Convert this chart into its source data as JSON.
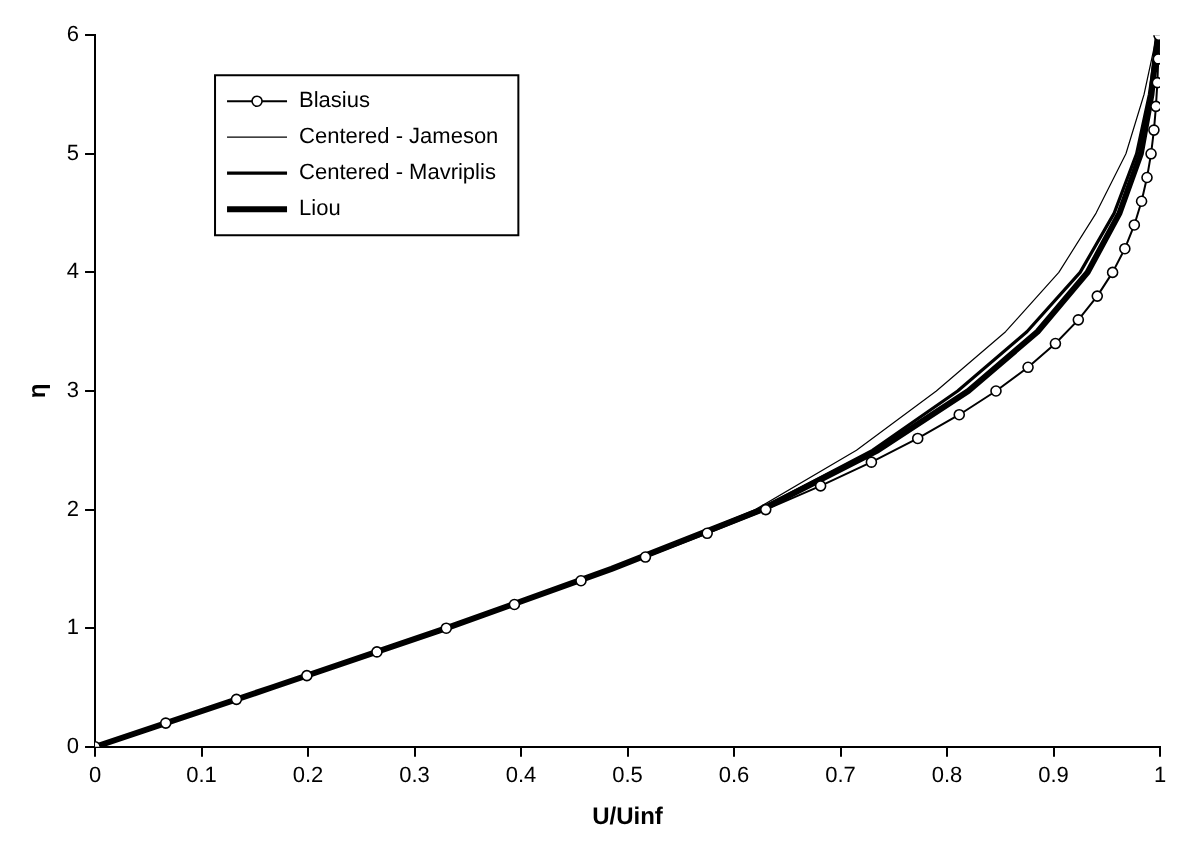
{
  "chart_data": {
    "type": "line",
    "xlabel": "U/Uinf",
    "ylabel": "η",
    "xlim": [
      0,
      1
    ],
    "xticks": [
      0,
      0.1,
      0.2,
      0.3,
      0.4,
      0.5,
      0.6,
      0.7,
      0.8,
      0.9,
      1
    ],
    "ylim": [
      0,
      6
    ],
    "yticks": [
      0,
      1,
      2,
      3,
      4,
      5,
      6
    ],
    "grid": false,
    "legend": "top left",
    "series": [
      {
        "name": "Blasius",
        "color": "#000000",
        "marker": "circle",
        "x": [
          0,
          0.0664,
          0.1328,
          0.1989,
          0.2647,
          0.3298,
          0.3938,
          0.4563,
          0.5168,
          0.5748,
          0.6298,
          0.6813,
          0.729,
          0.7725,
          0.8115,
          0.846,
          0.8761,
          0.9018,
          0.9233,
          0.9411,
          0.9555,
          0.967,
          0.9759,
          0.9827,
          0.9878,
          0.9916,
          0.9943,
          0.9962,
          0.9975,
          0.9984,
          0.999
        ],
        "values": [
          0,
          0.2,
          0.4,
          0.6,
          0.8,
          1,
          1.2,
          1.4,
          1.6,
          1.8,
          2,
          2.2,
          2.4,
          2.6,
          2.8,
          3,
          3.2,
          3.4,
          3.6,
          3.8,
          4,
          4.2,
          4.4,
          4.6,
          4.8,
          5,
          5.2,
          5.4,
          5.6,
          5.8,
          6
        ]
      },
      {
        "name": "Centered - Jameson",
        "color": "#000000",
        "marker": "none",
        "x": [
          0,
          0.168,
          0.332,
          0.487,
          0.62,
          0.715,
          0.79,
          0.855,
          0.905,
          0.94,
          0.968,
          0.985,
          0.997
        ],
        "values": [
          0,
          0.5,
          1,
          1.5,
          2,
          2.5,
          3,
          3.5,
          4,
          4.5,
          5,
          5.5,
          6
        ]
      },
      {
        "name": "Centered - Mavriplis",
        "color": "#000000",
        "marker": "none",
        "x": [
          0,
          0.166,
          0.329,
          0.484,
          0.624,
          0.73,
          0.81,
          0.875,
          0.925,
          0.957,
          0.978,
          0.99,
          0.998
        ],
        "values": [
          0,
          0.5,
          1,
          1.5,
          2,
          2.5,
          3,
          3.5,
          4,
          4.5,
          5,
          5.5,
          6
        ]
      },
      {
        "name": "Liou",
        "color": "#000000",
        "marker": "none",
        "x": [
          0,
          0.166,
          0.33,
          0.485,
          0.626,
          0.735,
          0.82,
          0.885,
          0.932,
          0.962,
          0.982,
          0.992,
          0.998
        ],
        "values": [
          0,
          0.5,
          1,
          1.5,
          2,
          2.5,
          3,
          3.5,
          4,
          4.5,
          5,
          5.5,
          6
        ]
      }
    ]
  }
}
